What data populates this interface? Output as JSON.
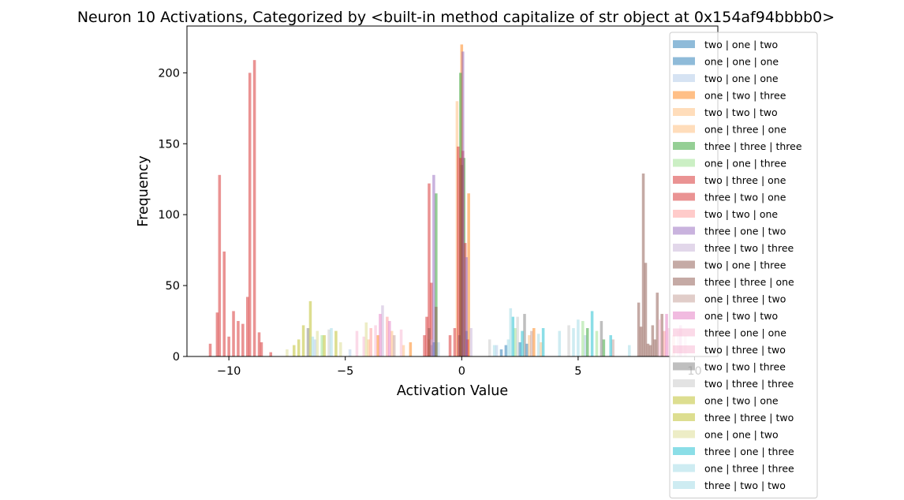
{
  "chart_data": {
    "type": "bar",
    "subtype": "histogram",
    "title": "Neuron 10 Activations, Categorized by <built-in method capitalize of str object at 0x154af94bbbb0>",
    "xlabel": "Activation Value",
    "ylabel": "Frequency",
    "xlim": [
      -11.8,
      11.0
    ],
    "ylim": [
      0,
      233
    ],
    "x_ticks": [
      -10,
      -5,
      0,
      5,
      10
    ],
    "x_tick_labels": [
      "−10",
      "−5",
      "0",
      "5",
      "10"
    ],
    "y_ticks": [
      0,
      50,
      100,
      150,
      200
    ],
    "y_tick_labels": [
      "0",
      "50",
      "100",
      "150",
      "200"
    ],
    "bar_width": 0.12,
    "grid": false,
    "legend_position": "upper-right",
    "bar_opacity": 0.5,
    "series": [
      {
        "name": "two | one | two",
        "color": "#1f77b4",
        "x": [
          -1.3,
          -0.1,
          1.7,
          2.5
        ],
        "values": [
          8,
          15,
          5,
          10
        ]
      },
      {
        "name": "one | one | one",
        "color": "#1f77b4",
        "x": [
          -1.2,
          0.2,
          1.9,
          2.8
        ],
        "values": [
          10,
          18,
          8,
          9
        ]
      },
      {
        "name": "two | one | one",
        "color": "#aec7e8",
        "x": [
          -6.3,
          -4.8,
          -1.0,
          1.5,
          5.3
        ],
        "values": [
          12,
          5,
          10,
          8,
          15
        ]
      },
      {
        "name": "one | two | three",
        "color": "#ff7f0e",
        "x": [
          -3.6,
          -2.2,
          0.0,
          0.3,
          3.1
        ],
        "values": [
          15,
          10,
          220,
          115,
          20
        ]
      },
      {
        "name": "two | two | two",
        "color": "#ffbb78",
        "x": [
          -4.0,
          -3.0,
          -0.2,
          2.9
        ],
        "values": [
          12,
          18,
          180,
          15
        ]
      },
      {
        "name": "one | three | one",
        "color": "#ffbb78",
        "x": [
          -2.5,
          -1.4,
          3.4
        ],
        "values": [
          8,
          12,
          10
        ]
      },
      {
        "name": "three | three | three",
        "color": "#2ca02c",
        "x": [
          -1.1,
          -0.05,
          0.1,
          5.4,
          6.1
        ],
        "values": [
          115,
          200,
          140,
          20,
          12
        ]
      },
      {
        "name": "one | one | three",
        "color": "#98df8a",
        "x": [
          -6.0,
          2.3,
          5.2,
          5.8
        ],
        "values": [
          15,
          20,
          25,
          18
        ]
      },
      {
        "name": "two | three | one",
        "color": "#d62728",
        "x": [
          -10.5,
          -10.4,
          -10.2,
          -9.2,
          -9.1,
          -1.5,
          -1.4,
          -0.15,
          -0.05,
          0.05,
          0.15
        ],
        "values": [
          31,
          128,
          74,
          42,
          200,
          28,
          122,
          148,
          140,
          145,
          80
        ]
      },
      {
        "name": "three | two | one",
        "color": "#d62728",
        "x": [
          -10.8,
          -10.0,
          -9.8,
          -9.6,
          -9.4,
          -8.9,
          -8.7,
          -8.6,
          -8.2,
          -1.6,
          -1.3,
          -0.5,
          -0.3,
          0.25
        ],
        "values": [
          9,
          14,
          32,
          25,
          23,
          209,
          17,
          10,
          3,
          15,
          52,
          15,
          20,
          12
        ]
      },
      {
        "name": "two | two | one",
        "color": "#ff9896",
        "x": [
          -3.9,
          -3.2,
          8.7,
          9.1
        ],
        "values": [
          20,
          28,
          18,
          15
        ]
      },
      {
        "name": "three | one | two",
        "color": "#9467bd",
        "x": [
          -1.2,
          0.05,
          0.2
        ],
        "values": [
          128,
          215,
          70
        ]
      },
      {
        "name": "three | two | three",
        "color": "#c5b0d5",
        "x": [
          -3.4,
          -1.3,
          0.4
        ],
        "values": [
          36,
          12,
          20
        ]
      },
      {
        "name": "two | one | three",
        "color": "#8c564b",
        "x": [
          7.7,
          7.8,
          7.9,
          8.1,
          8.3,
          -1.4,
          0.0
        ],
        "values": [
          21,
          129,
          66,
          8,
          12,
          20,
          135
        ]
      },
      {
        "name": "three | three | one",
        "color": "#8c564b",
        "x": [
          7.6,
          8.0,
          8.2,
          8.4,
          8.6,
          -1.1
        ],
        "values": [
          38,
          9,
          22,
          45,
          30,
          35
        ]
      },
      {
        "name": "one | three | two",
        "color": "#c49c94",
        "x": [
          -2.9,
          3.0,
          6.5
        ],
        "values": [
          15,
          18,
          12
        ]
      },
      {
        "name": "one | two | two",
        "color": "#e377c2",
        "x": [
          -3.5,
          -3.1,
          8.8,
          9.4
        ],
        "values": [
          30,
          25,
          30,
          22
        ]
      },
      {
        "name": "three | one | one",
        "color": "#f7b6d2",
        "x": [
          -4.5,
          -3.7,
          8.9,
          9.6
        ],
        "values": [
          18,
          22,
          20,
          15
        ]
      },
      {
        "name": "two | three | two",
        "color": "#f7b6d2",
        "x": [
          -4.2,
          -2.6,
          8.5,
          9.3
        ],
        "values": [
          14,
          19,
          26,
          18
        ]
      },
      {
        "name": "two | two | three",
        "color": "#7f7f7f",
        "x": [
          -6.6,
          2.7,
          6.0
        ],
        "values": [
          20,
          30,
          25
        ]
      },
      {
        "name": "two | three | three",
        "color": "#c7c7c7",
        "x": [
          -5.7,
          1.2,
          2.4,
          4.6
        ],
        "values": [
          19,
          12,
          28,
          22
        ]
      },
      {
        "name": "one | two | one",
        "color": "#bcbd22",
        "x": [
          -7.0,
          -6.5,
          -5.9
        ],
        "values": [
          12,
          39,
          15
        ]
      },
      {
        "name": "three | three | two",
        "color": "#bcbd22",
        "x": [
          -7.2,
          -6.8,
          -5.4
        ],
        "values": [
          8,
          22,
          18
        ]
      },
      {
        "name": "one | one | two",
        "color": "#dbdb8d",
        "x": [
          -7.5,
          -6.2,
          -5.2,
          -4.1
        ],
        "values": [
          5,
          18,
          10,
          24
        ]
      },
      {
        "name": "three | one | three",
        "color": "#17becf",
        "x": [
          2.2,
          2.6,
          3.5,
          5.6,
          6.4
        ],
        "values": [
          28,
          18,
          20,
          32,
          15
        ]
      },
      {
        "name": "one | three | three",
        "color": "#9edae5",
        "x": [
          1.4,
          2.1,
          3.3,
          4.8,
          7.2
        ],
        "values": [
          8,
          34,
          16,
          20,
          8
        ]
      },
      {
        "name": "three | two | two",
        "color": "#9edae5",
        "x": [
          -6.4,
          -5.6,
          2.0,
          4.2,
          5.0
        ],
        "values": [
          14,
          20,
          12,
          18,
          26
        ]
      }
    ]
  }
}
